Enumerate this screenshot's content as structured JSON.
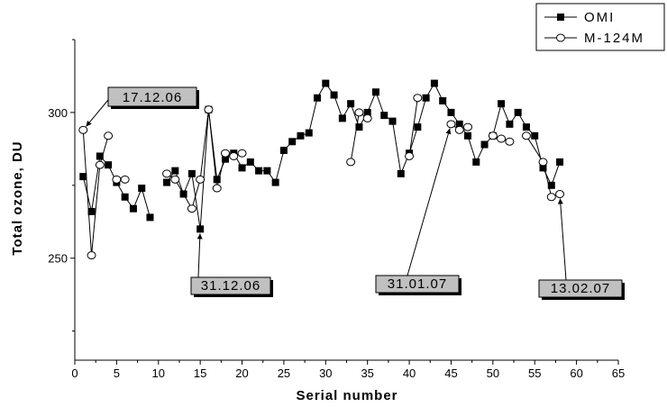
{
  "chart_data": {
    "type": "line",
    "xlabel": "Serial number",
    "ylabel": "Total ozone, DU",
    "xlim": [
      0,
      65
    ],
    "ylim": [
      215,
      325
    ],
    "xticks": [
      0,
      5,
      10,
      15,
      20,
      25,
      30,
      35,
      40,
      45,
      50,
      55,
      60,
      65
    ],
    "yticks": [
      250,
      300
    ],
    "grid": false,
    "legend_position": "top-right",
    "series": [
      {
        "name": "OMI",
        "marker": "filled-square",
        "color": "#000000",
        "segments": [
          [
            [
              1,
              278
            ],
            [
              2,
              266
            ],
            [
              3,
              285
            ],
            [
              4,
              282
            ],
            [
              5,
              276
            ],
            [
              6,
              271
            ],
            [
              7,
              267
            ],
            [
              8,
              274
            ],
            [
              9,
              264
            ]
          ],
          [
            [
              11,
              276
            ],
            [
              12,
              280
            ],
            [
              13,
              272
            ],
            [
              14,
              279
            ],
            [
              15,
              260
            ],
            [
              16,
              301
            ],
            [
              17,
              277
            ],
            [
              18,
              284
            ],
            [
              19,
              286
            ],
            [
              20,
              281
            ],
            [
              21,
              283
            ],
            [
              22,
              280
            ],
            [
              23,
              280
            ],
            [
              24,
              276
            ],
            [
              25,
              287
            ],
            [
              26,
              290
            ],
            [
              27,
              292
            ],
            [
              28,
              293
            ],
            [
              29,
              305
            ],
            [
              30,
              310
            ],
            [
              31,
              306
            ],
            [
              32,
              298
            ],
            [
              33,
              303
            ],
            [
              34,
              295
            ],
            [
              35,
              300
            ],
            [
              36,
              307
            ],
            [
              37,
              299
            ],
            [
              38,
              297
            ],
            [
              39,
              279
            ],
            [
              40,
              286
            ],
            [
              41,
              295
            ],
            [
              42,
              305
            ],
            [
              43,
              310
            ],
            [
              44,
              304
            ],
            [
              45,
              300
            ],
            [
              46,
              296
            ],
            [
              47,
              292
            ],
            [
              48,
              283
            ],
            [
              49,
              289
            ],
            [
              50,
              292
            ],
            [
              51,
              303
            ],
            [
              52,
              296
            ],
            [
              53,
              300
            ],
            [
              54,
              295
            ],
            [
              55,
              292
            ],
            [
              56,
              281
            ],
            [
              57,
              275
            ],
            [
              58,
              283
            ]
          ]
        ]
      },
      {
        "name": "M-124M",
        "marker": "open-circle",
        "color": "#000000",
        "segments": [
          [
            [
              1,
              294
            ],
            [
              2,
              251
            ],
            [
              3,
              282
            ],
            [
              4,
              292
            ]
          ],
          [
            [
              5,
              277
            ],
            [
              6,
              277
            ]
          ],
          [
            [
              11,
              279
            ],
            [
              12,
              277
            ],
            [
              14,
              267
            ],
            [
              15,
              277
            ],
            [
              16,
              301
            ],
            [
              17,
              274
            ],
            [
              18,
              286
            ],
            [
              19,
              285
            ],
            [
              20,
              286
            ]
          ],
          [
            [
              33,
              283
            ],
            [
              34,
              300
            ],
            [
              35,
              298
            ]
          ],
          [
            [
              40,
              285
            ],
            [
              41,
              305
            ]
          ],
          [
            [
              45,
              296
            ],
            [
              46,
              294
            ],
            [
              47,
              295
            ]
          ],
          [
            [
              50,
              292
            ],
            [
              51,
              291
            ],
            [
              52,
              290
            ]
          ],
          [
            [
              54,
              292
            ],
            [
              56,
              283
            ],
            [
              57,
              271
            ],
            [
              58,
              272
            ]
          ]
        ]
      }
    ],
    "annotations": [
      {
        "text": "17.12.06",
        "target": [
          1,
          294
        ]
      },
      {
        "text": "31.12.06",
        "target": [
          15,
          260
        ]
      },
      {
        "text": "31.01.07",
        "target": [
          45,
          296
        ]
      },
      {
        "text": "13.02.07",
        "target": [
          58,
          272
        ]
      }
    ]
  }
}
